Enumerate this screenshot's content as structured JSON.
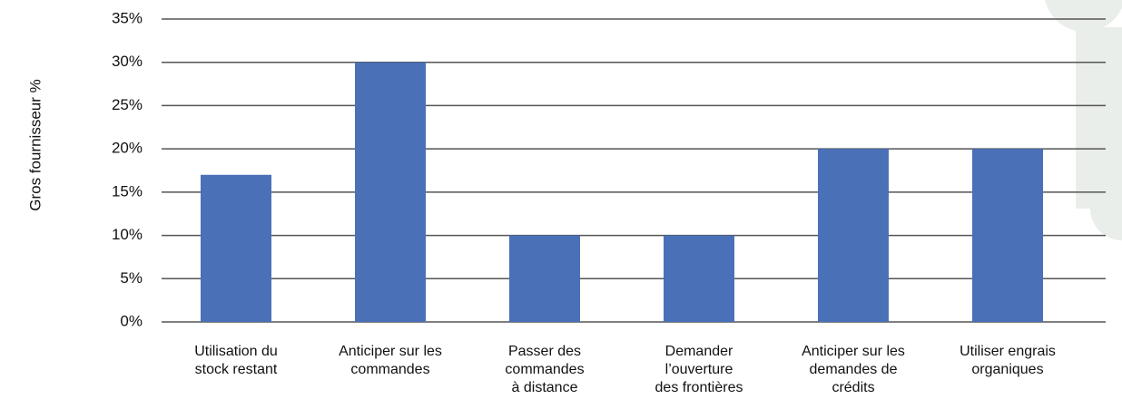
{
  "chart_data": {
    "type": "bar",
    "y_label": "Gros fournisseur %",
    "categories": [
      "Utilisation du\nstock restant",
      "Anticiper sur les\ncommandes",
      "Passer des\ncommandes\nà distance",
      "Demander\nl’ouverture\ndes frontières",
      "Anticiper sur les\ndemandes de\ncrédits",
      "Utiliser engrais\norganiques"
    ],
    "values": [
      17,
      30,
      10,
      10,
      20,
      20
    ],
    "color": "#4a70b7",
    "ylim": [
      0,
      35
    ],
    "yticks": [
      {
        "value": 0,
        "label": "0%"
      },
      {
        "value": 5,
        "label": "5%"
      },
      {
        "value": 10,
        "label": "10%"
      },
      {
        "value": 15,
        "label": "15%"
      },
      {
        "value": 20,
        "label": "20%"
      },
      {
        "value": 25,
        "label": "25%"
      },
      {
        "value": 30,
        "label": "30%"
      },
      {
        "value": 35,
        "label": "35%"
      }
    ],
    "grid": true
  }
}
